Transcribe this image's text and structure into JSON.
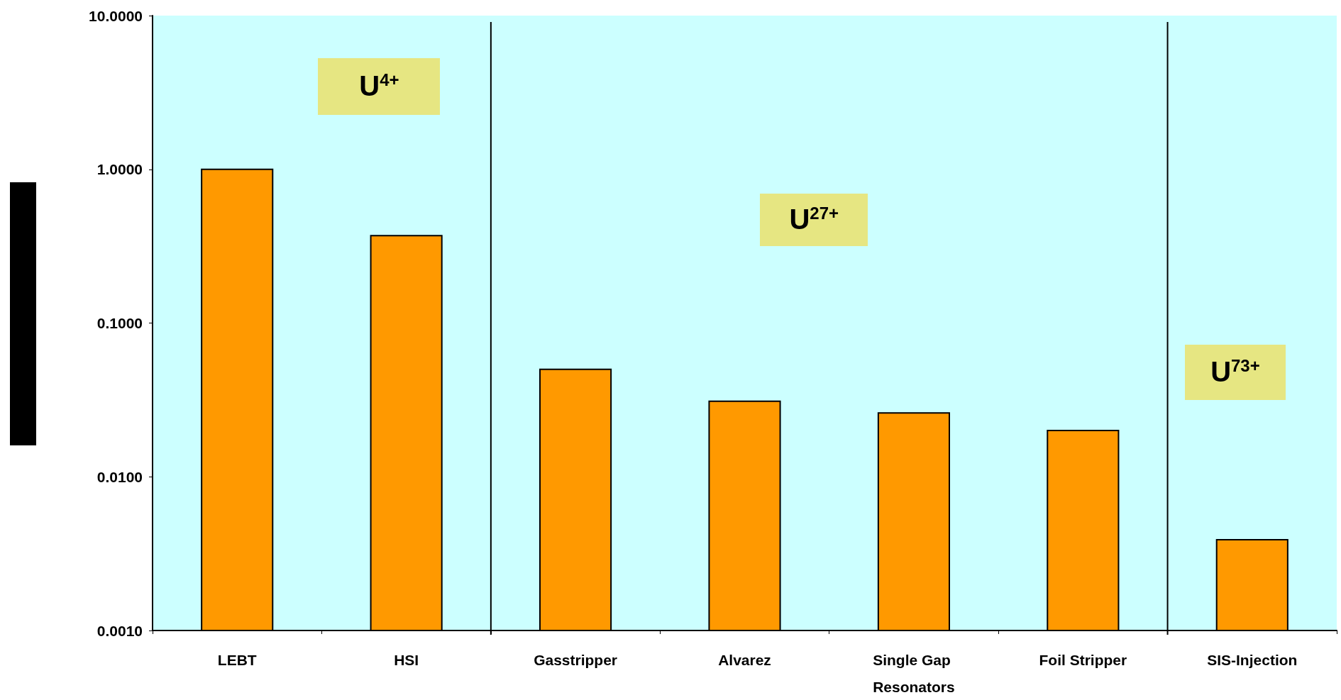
{
  "chart_data": {
    "type": "bar",
    "categories": [
      "LEBT",
      "HSI",
      "Gasstripper",
      "Alvarez",
      "Single Gap Resonators",
      "Foil Stripper",
      "SIS-Injection"
    ],
    "values": [
      1.0,
      0.37,
      0.05,
      0.031,
      0.026,
      0.02,
      0.0039
    ],
    "color": "#ff9900",
    "log": "y",
    "ylim": [
      0.001,
      10
    ],
    "yticks": [
      {
        "value": 0.001,
        "label": "0.0010"
      },
      {
        "value": 0.01,
        "label": "0.0100"
      },
      {
        "value": 0.1,
        "label": "0.1000"
      },
      {
        "value": 1,
        "label": "1.0000"
      },
      {
        "value": 10,
        "label": "10.0000"
      }
    ],
    "grid": false,
    "annotations": [
      "U$^{4+}$",
      "U$^{27+}$",
      "U$^{73+}$"
    ]
  }
}
